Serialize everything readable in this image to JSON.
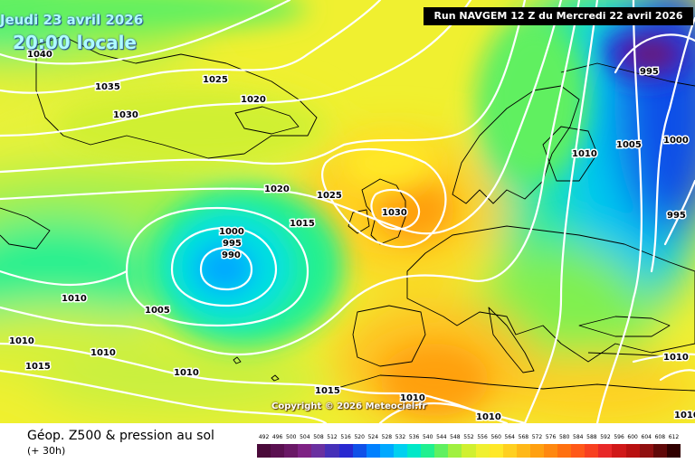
{
  "header": {
    "forecast_date": "Jeudi 23 avril 2026",
    "forecast_time": "20:00 locale",
    "run_info": "Run NAVGEM 12 Z du Mercredi 22 avril 2026"
  },
  "copyright": "Copyright © 2026 Meteociel.fr",
  "footer": {
    "title": "Géop. Z500 & pression au sol",
    "subtitle": "(+ 30h)"
  },
  "legend": {
    "values": [
      "492",
      "496",
      "500",
      "504",
      "508",
      "512",
      "516",
      "520",
      "524",
      "528",
      "532",
      "536",
      "540",
      "544",
      "548",
      "552",
      "556",
      "560",
      "564",
      "568",
      "572",
      "576",
      "580",
      "584",
      "588",
      "592",
      "596",
      "600",
      "604",
      "608",
      "612"
    ],
    "colors": [
      "#4a0a3a",
      "#5a1050",
      "#6a1866",
      "#7e2284",
      "#6a30a0",
      "#4630b8",
      "#2828d0",
      "#1050e8",
      "#0080ff",
      "#00a8ff",
      "#00d0f0",
      "#00e8c8",
      "#20f090",
      "#60f060",
      "#a0f040",
      "#d0f030",
      "#f0f030",
      "#ffe828",
      "#ffd020",
      "#ffb818",
      "#ffa010",
      "#ff8810",
      "#ff7010",
      "#ff5818",
      "#f84020",
      "#e82828",
      "#d01818",
      "#b81010",
      "#901010",
      "#600808",
      "#300000"
    ]
  },
  "isobars": [
    {
      "label": "1040"
    },
    {
      "label": "1035"
    },
    {
      "label": "1030"
    },
    {
      "label": "1025"
    },
    {
      "label": "1020"
    },
    {
      "label": "1020"
    },
    {
      "label": "1025"
    },
    {
      "label": "1030"
    },
    {
      "label": "1015"
    },
    {
      "label": "1000"
    },
    {
      "label": "995"
    },
    {
      "label": "990"
    },
    {
      "label": "1010"
    },
    {
      "label": "1005"
    },
    {
      "label": "1010"
    },
    {
      "label": "1010"
    },
    {
      "label": "1015"
    },
    {
      "label": "1010"
    },
    {
      "label": "1015"
    },
    {
      "label": "1010"
    },
    {
      "label": "1010"
    },
    {
      "label": "995"
    },
    {
      "label": "1000"
    },
    {
      "label": "1005"
    },
    {
      "label": "1010"
    },
    {
      "label": "995"
    },
    {
      "label": "1010"
    },
    {
      "label": "1010"
    }
  ],
  "colors": {
    "banner_bg": "#000000",
    "date_text": "#aefcff",
    "isobar_line": "#ffffff",
    "coast_line": "#000000"
  }
}
